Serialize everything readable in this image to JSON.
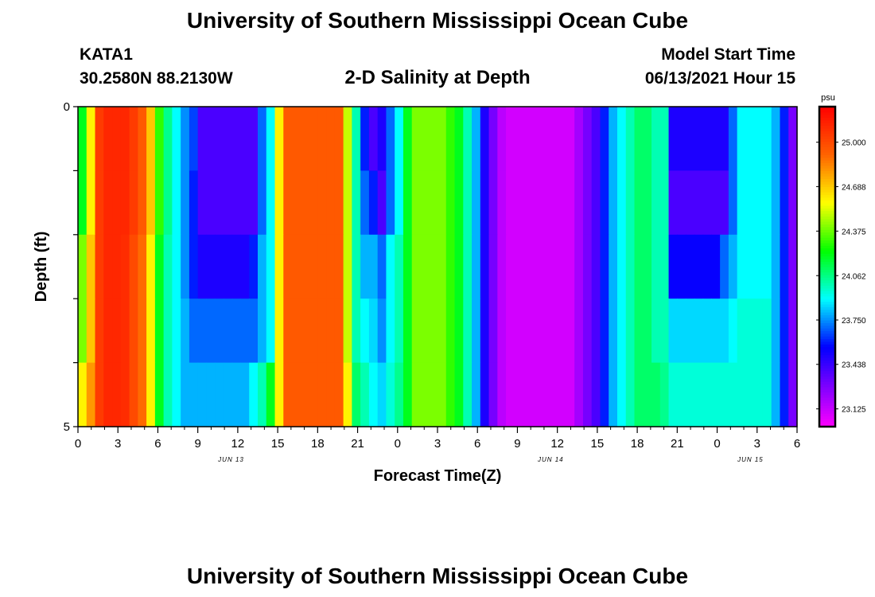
{
  "page": {
    "title": "University of Southern Mississippi Ocean Cube",
    "footer_title": "University of Southern Mississippi Ocean Cube",
    "station": "KATA1",
    "coords": "30.2580N  88.2130W",
    "plot_title": "2-D Salinity at Depth",
    "model_start_label": "Model Start Time",
    "model_start_value": "06/13/2021 Hour 15"
  },
  "chart_data": {
    "type": "heatmap",
    "title": "2-D Salinity at Depth",
    "xlabel": "Forecast Time(Z)",
    "ylabel": "Depth (ft)",
    "x_ticks": [
      "0",
      "3",
      "6",
      "9",
      "12",
      "15",
      "18",
      "21",
      "0",
      "3",
      "6",
      "9",
      "12",
      "15",
      "18",
      "21",
      "0",
      "3",
      "6"
    ],
    "y_ticks": [
      "0",
      "5"
    ],
    "ylim": [
      0,
      5
    ],
    "date_labels": [
      {
        "text": "JUN 13",
        "hour": 11.5
      },
      {
        "text": "JUN 14",
        "hour": 35.5
      },
      {
        "text": "JUN 15",
        "hour": 50.5
      }
    ],
    "colorbar": {
      "unit": "psu",
      "labels": [
        "25.000",
        "24.688",
        "24.375",
        "24.062",
        "23.750",
        "23.438",
        "23.125"
      ],
      "values": [
        25.0,
        24.688,
        24.375,
        24.062,
        23.75,
        23.438,
        23.125
      ],
      "range": [
        23.0,
        25.25
      ]
    },
    "depth_levels": [
      0,
      1,
      2,
      3,
      4
    ],
    "salinity": [
      [
        24.2,
        24.6,
        25.05,
        25.12,
        25.12,
        25.12,
        25.05,
        24.95,
        24.7,
        24.3,
        24.05,
        23.9,
        23.75,
        23.65,
        23.4,
        23.4,
        23.4,
        23.4,
        23.4,
        23.4,
        23.4,
        23.7,
        23.9,
        24.6,
        24.95,
        24.95,
        24.95,
        24.95,
        24.95,
        24.95,
        24.95,
        24.5,
        24.0,
        23.6,
        23.4,
        23.5,
        23.7,
        23.9,
        24.2,
        24.4,
        24.4,
        24.4,
        24.4,
        24.3,
        24.2,
        24.0,
        23.8,
        23.5,
        23.3,
        23.15,
        23.1,
        23.1,
        23.1,
        23.1,
        23.1,
        23.1,
        23.1,
        23.1,
        23.2,
        23.3,
        23.4,
        23.6,
        23.8,
        23.9,
        24.0,
        24.1,
        24.1,
        24.0,
        24.0,
        23.5,
        23.5,
        23.5,
        23.5,
        23.5,
        23.5,
        23.5,
        23.7,
        23.9,
        23.9,
        23.9,
        23.9,
        23.8,
        23.6,
        23.3
      ],
      [
        24.2,
        24.6,
        25.05,
        25.12,
        25.12,
        25.12,
        25.05,
        24.95,
        24.7,
        24.3,
        24.05,
        23.9,
        23.75,
        23.6,
        23.4,
        23.4,
        23.4,
        23.4,
        23.4,
        23.4,
        23.4,
        23.7,
        23.9,
        24.6,
        24.95,
        24.95,
        24.95,
        24.95,
        24.95,
        24.95,
        24.95,
        24.5,
        24.0,
        23.7,
        23.6,
        23.4,
        23.7,
        23.9,
        24.2,
        24.4,
        24.4,
        24.4,
        24.4,
        24.3,
        24.2,
        24.0,
        23.8,
        23.5,
        23.3,
        23.15,
        23.1,
        23.1,
        23.1,
        23.1,
        23.1,
        23.1,
        23.1,
        23.1,
        23.2,
        23.3,
        23.4,
        23.6,
        23.8,
        23.9,
        24.0,
        24.1,
        24.1,
        24.0,
        24.0,
        23.4,
        23.4,
        23.4,
        23.4,
        23.4,
        23.4,
        23.4,
        23.7,
        23.9,
        23.9,
        23.9,
        23.9,
        23.8,
        23.6,
        23.3
      ],
      [
        24.4,
        24.7,
        25.05,
        25.12,
        25.12,
        25.1,
        25.0,
        24.9,
        24.6,
        24.2,
        24.0,
        23.9,
        23.75,
        23.6,
        23.5,
        23.5,
        23.5,
        23.5,
        23.5,
        23.5,
        23.6,
        23.8,
        23.9,
        24.6,
        24.95,
        24.95,
        24.95,
        24.95,
        24.95,
        24.95,
        24.95,
        24.5,
        24.0,
        23.8,
        23.8,
        23.7,
        23.9,
        24.0,
        24.2,
        24.4,
        24.4,
        24.4,
        24.4,
        24.3,
        24.2,
        24.0,
        23.8,
        23.5,
        23.3,
        23.15,
        23.1,
        23.1,
        23.1,
        23.1,
        23.1,
        23.1,
        23.1,
        23.1,
        23.2,
        23.3,
        23.4,
        23.6,
        23.8,
        23.9,
        24.0,
        24.1,
        24.1,
        24.0,
        24.0,
        23.55,
        23.55,
        23.55,
        23.55,
        23.55,
        23.55,
        23.7,
        23.8,
        23.9,
        23.9,
        23.9,
        23.9,
        23.8,
        23.6,
        23.3
      ],
      [
        24.4,
        24.7,
        25.05,
        25.12,
        25.12,
        25.1,
        25.0,
        24.9,
        24.6,
        24.2,
        24.0,
        23.9,
        23.8,
        23.7,
        23.7,
        23.7,
        23.7,
        23.7,
        23.7,
        23.7,
        23.7,
        23.8,
        23.9,
        24.6,
        24.95,
        24.95,
        24.95,
        24.95,
        24.95,
        24.95,
        24.95,
        24.5,
        24.0,
        23.9,
        23.85,
        23.75,
        23.9,
        24.0,
        24.2,
        24.4,
        24.4,
        24.4,
        24.4,
        24.3,
        24.2,
        24.0,
        23.8,
        23.5,
        23.3,
        23.15,
        23.1,
        23.1,
        23.1,
        23.1,
        23.1,
        23.1,
        23.1,
        23.1,
        23.2,
        23.3,
        23.4,
        23.6,
        23.8,
        23.9,
        24.0,
        24.1,
        24.1,
        24.0,
        24.0,
        23.85,
        23.85,
        23.85,
        23.85,
        23.85,
        23.85,
        23.85,
        23.9,
        23.95,
        23.95,
        23.95,
        23.95,
        23.8,
        23.6,
        23.3
      ],
      [
        24.6,
        24.8,
        25.05,
        25.12,
        25.12,
        25.1,
        25.0,
        24.9,
        24.6,
        24.2,
        24.0,
        23.9,
        23.8,
        23.8,
        23.8,
        23.8,
        23.8,
        23.8,
        23.8,
        23.8,
        23.9,
        24.0,
        24.2,
        24.6,
        24.95,
        24.95,
        24.95,
        24.95,
        24.95,
        24.95,
        24.95,
        24.6,
        24.1,
        24.0,
        23.9,
        23.85,
        23.95,
        24.05,
        24.2,
        24.4,
        24.4,
        24.4,
        24.4,
        24.3,
        24.2,
        24.0,
        23.8,
        23.5,
        23.3,
        23.15,
        23.1,
        23.1,
        23.1,
        23.1,
        23.1,
        23.1,
        23.1,
        23.1,
        23.2,
        23.3,
        23.4,
        23.6,
        23.8,
        23.9,
        24.0,
        24.1,
        24.1,
        24.1,
        24.05,
        23.95,
        23.95,
        23.95,
        23.95,
        23.95,
        23.95,
        23.95,
        23.95,
        23.95,
        23.95,
        23.95,
        23.95,
        23.8,
        23.6,
        23.3
      ]
    ]
  }
}
